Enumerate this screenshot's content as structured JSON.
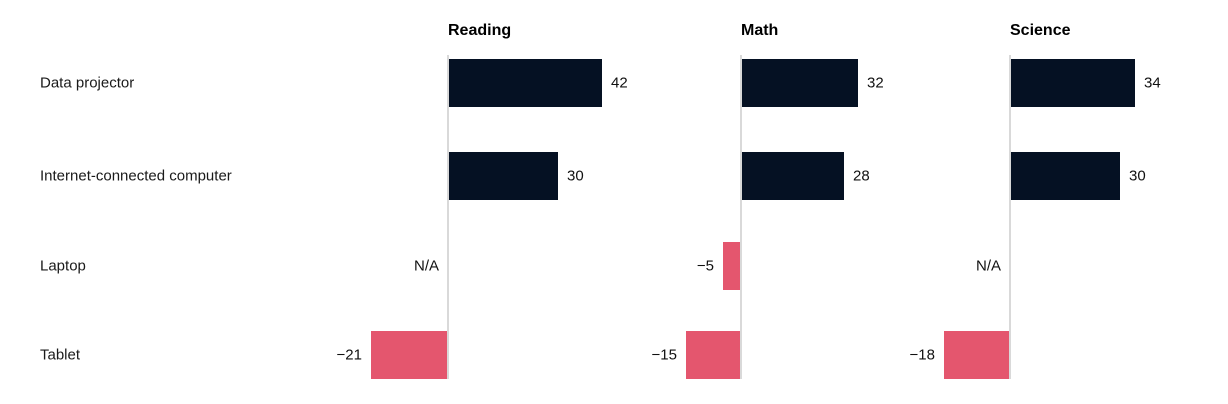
{
  "chart_data": {
    "type": "bar",
    "orientation": "horizontal",
    "title": "",
    "categories": [
      "Data projector",
      "Internet-connected computer",
      "Laptop",
      "Tablet"
    ],
    "panels": [
      {
        "title": "Reading",
        "values": [
          42,
          30,
          null,
          -21
        ],
        "labels": [
          "42",
          "30",
          "N/A",
          "−21"
        ]
      },
      {
        "title": "Math",
        "values": [
          32,
          28,
          -5,
          -15
        ],
        "labels": [
          "32",
          "28",
          "−5",
          "−15"
        ]
      },
      {
        "title": "Science",
        "values": [
          34,
          30,
          null,
          -18
        ],
        "labels": [
          "34",
          "30",
          "N/A",
          "−18"
        ]
      }
    ],
    "na_label": "N/A",
    "xlim": [
      -25,
      45
    ],
    "grid": false,
    "legend": false,
    "colors": {
      "positive_bar": "#051123",
      "negative_bar": "#e4566e",
      "axis_line": "#d9d9d9",
      "category_text": "#1a1a1a",
      "header_text": "#000000"
    }
  }
}
